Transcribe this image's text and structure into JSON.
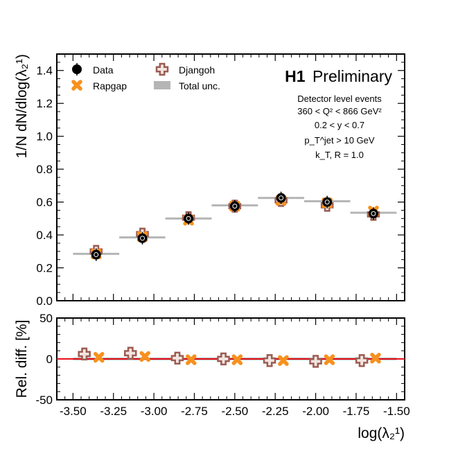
{
  "chart_data": [
    {
      "type": "scatter",
      "panel": "main",
      "ylabel": "1/N dN/dlog(λ₂¹)",
      "ylim": [
        0,
        1.5
      ],
      "xlim": [
        -3.6,
        -1.45
      ],
      "yticks": [
        0,
        0.2,
        0.4,
        0.6,
        0.8,
        1.0,
        1.2,
        1.4
      ],
      "ytick_labels": [
        "0.0",
        "0.2",
        "0.4",
        "0.6",
        "0.8",
        "1.0",
        "1.2",
        "1.4"
      ],
      "bin_edges": [
        -3.5,
        -3.214,
        -2.929,
        -2.643,
        -2.357,
        -2.071,
        -1.786,
        -1.5
      ],
      "bin_centers": [
        -3.357,
        -3.071,
        -2.786,
        -2.5,
        -2.214,
        -1.929,
        -1.643
      ],
      "series": [
        {
          "name": "Data",
          "marker": "circle",
          "values": [
            0.28,
            0.38,
            0.5,
            0.575,
            0.625,
            0.6,
            0.53
          ]
        },
        {
          "name": "Rapgap",
          "marker": "x-cross",
          "values": [
            0.285,
            0.39,
            0.49,
            0.575,
            0.61,
            0.595,
            0.545
          ]
        },
        {
          "name": "Djangoh",
          "marker": "plus",
          "values": [
            0.3,
            0.405,
            0.505,
            0.575,
            0.61,
            0.58,
            0.525
          ]
        },
        {
          "name": "Total unc.",
          "marker": "band",
          "values": [
            0.285,
            0.385,
            0.5,
            0.58,
            0.625,
            0.605,
            0.535
          ]
        }
      ],
      "legend": {
        "placement": "top-left",
        "entries": [
          "Data",
          "Djangoh",
          "Rapgap",
          "Total unc."
        ]
      },
      "annotations": {
        "brand": "H1",
        "brand_suffix": "Preliminary",
        "lines": [
          "Detector level events",
          "360 < Q² < 866 GeV²",
          "0.2 < y < 0.7",
          "p_T^jet > 10 GeV",
          "k_T, R = 1.0"
        ]
      }
    },
    {
      "type": "scatter",
      "panel": "ratio",
      "xlabel": "log(λ₂¹)",
      "ylabel": "Rel. diff. [%]",
      "ylim": [
        -50,
        50
      ],
      "xlim": [
        -3.6,
        -1.45
      ],
      "yticks": [
        -50,
        0,
        50
      ],
      "ytick_labels": [
        "-50",
        "0",
        "50"
      ],
      "xticks": [
        -3.5,
        -3.25,
        -3.0,
        -2.75,
        -2.5,
        -2.25,
        -2.0,
        -1.75,
        -1.5
      ],
      "xtick_labels": [
        "-3.50",
        "-3.25",
        "-3.00",
        "-2.75",
        "-2.50",
        "-2.25",
        "-2.00",
        "-1.75",
        "-1.50"
      ],
      "reference_line": 0,
      "series": [
        {
          "name": "Djangoh",
          "marker": "plus",
          "x": [
            -3.43,
            -3.145,
            -2.855,
            -2.57,
            -2.285,
            -2.0,
            -1.715
          ],
          "values": [
            6,
            7,
            1,
            0,
            -2,
            -3,
            -2
          ]
        },
        {
          "name": "Rapgap",
          "marker": "x-cross",
          "x": [
            -3.34,
            -3.055,
            -2.77,
            -2.485,
            -2.2,
            -1.915,
            -1.63
          ],
          "values": [
            2,
            3,
            -1,
            -1,
            -2,
            -1,
            1
          ]
        }
      ]
    }
  ]
}
